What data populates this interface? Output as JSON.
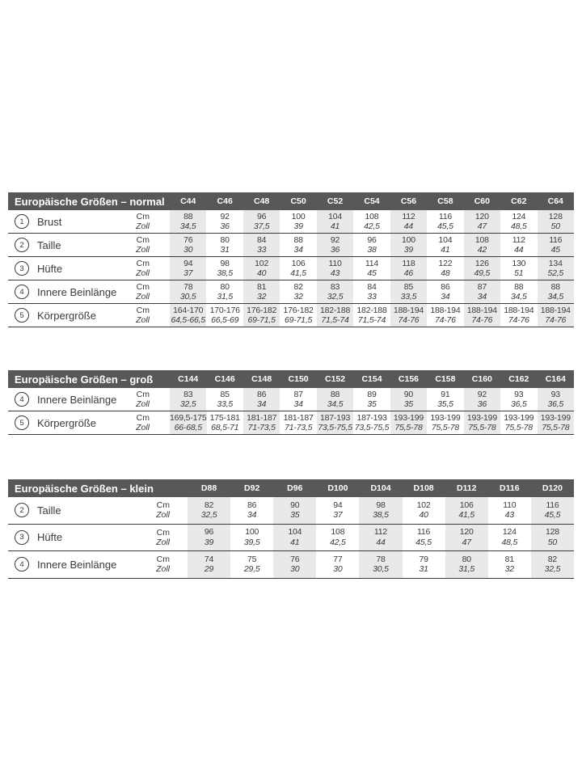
{
  "colors": {
    "header_background": "#58585a",
    "header_text": "#ffffff",
    "column_band": "#e9e9e9",
    "separator_line": "#3a3a3a",
    "body_text": "#3a3a3a"
  },
  "units": {
    "cm": "Cm",
    "zoll": "Zoll"
  },
  "tables": [
    {
      "id": "normal",
      "title": "Europäische Größen – normal",
      "columns": [
        "C44",
        "C46",
        "C48",
        "C50",
        "C52",
        "C54",
        "C56",
        "C58",
        "C60",
        "C62",
        "C64"
      ],
      "rows": [
        {
          "num": "1",
          "label": "Brust",
          "cm": [
            "88",
            "92",
            "96",
            "100",
            "104",
            "108",
            "112",
            "116",
            "120",
            "124",
            "128"
          ],
          "zoll": [
            "34,5",
            "36",
            "37,5",
            "39",
            "41",
            "42,5",
            "44",
            "45,5",
            "47",
            "48,5",
            "50"
          ]
        },
        {
          "num": "2",
          "label": "Taille",
          "cm": [
            "76",
            "80",
            "84",
            "88",
            "92",
            "96",
            "100",
            "104",
            "108",
            "112",
            "116"
          ],
          "zoll": [
            "30",
            "31",
            "33",
            "34",
            "36",
            "38",
            "39",
            "41",
            "42",
            "44",
            "45"
          ]
        },
        {
          "num": "3",
          "label": "Hüfte",
          "cm": [
            "94",
            "98",
            "102",
            "106",
            "110",
            "114",
            "118",
            "122",
            "126",
            "130",
            "134"
          ],
          "zoll": [
            "37",
            "38,5",
            "40",
            "41,5",
            "43",
            "45",
            "46",
            "48",
            "49,5",
            "51",
            "52,5"
          ]
        },
        {
          "num": "4",
          "label": "Innere Beinlänge",
          "cm": [
            "78",
            "80",
            "81",
            "82",
            "83",
            "84",
            "85",
            "86",
            "87",
            "88",
            "88"
          ],
          "zoll": [
            "30,5",
            "31,5",
            "32",
            "32",
            "32,5",
            "33",
            "33,5",
            "34",
            "34",
            "34,5",
            "34,5"
          ]
        },
        {
          "num": "5",
          "label": "Körpergröße",
          "cm": [
            "164-170",
            "170-176",
            "176-182",
            "176-182",
            "182-188",
            "182-188",
            "188-194",
            "188-194",
            "188-194",
            "188-194",
            "188-194"
          ],
          "zoll": [
            "64,5-66,5",
            "66,5-69",
            "69-71,5",
            "69-71,5",
            "71,5-74",
            "71,5-74",
            "74-76",
            "74-76",
            "74-76",
            "74-76",
            "74-76"
          ]
        }
      ]
    },
    {
      "id": "gross",
      "title": "Europäische Größen – groß",
      "columns": [
        "C144",
        "C146",
        "C148",
        "C150",
        "C152",
        "C154",
        "C156",
        "C158",
        "C160",
        "C162",
        "C164"
      ],
      "rows": [
        {
          "num": "4",
          "label": "Innere Beinlänge",
          "cm": [
            "83",
            "85",
            "86",
            "87",
            "88",
            "89",
            "90",
            "91",
            "92",
            "93",
            "93"
          ],
          "zoll": [
            "32,5",
            "33,5",
            "34",
            "34",
            "34,5",
            "35",
            "35",
            "35,5",
            "36",
            "36,5",
            "36,5"
          ]
        },
        {
          "num": "5",
          "label": "Körpergröße",
          "cm": [
            "169,5-175",
            "175-181",
            "181-187",
            "181-187",
            "187-193",
            "187-193",
            "193-199",
            "193-199",
            "193-199",
            "193-199",
            "193-199"
          ],
          "zoll": [
            "66-68,5",
            "68,5-71",
            "71-73,5",
            "71-73,5",
            "73,5-75,5",
            "73,5-75,5",
            "75,5-78",
            "75,5-78",
            "75,5-78",
            "75,5-78",
            "75,5-78"
          ]
        }
      ]
    },
    {
      "id": "klein",
      "title": "Europäische Größen – klein",
      "columns": [
        "D88",
        "D92",
        "D96",
        "D100",
        "D104",
        "D108",
        "D112",
        "D116",
        "D120"
      ],
      "rows": [
        {
          "num": "2",
          "label": "Taille",
          "cm": [
            "82",
            "86",
            "90",
            "94",
            "98",
            "102",
            "106",
            "110",
            "116"
          ],
          "zoll": [
            "32,5",
            "34",
            "35",
            "37",
            "38,5",
            "40",
            "41,5",
            "43",
            "45,5"
          ]
        },
        {
          "num": "3",
          "label": "Hüfte",
          "cm": [
            "96",
            "100",
            "104",
            "108",
            "112",
            "116",
            "120",
            "124",
            "128"
          ],
          "zoll": [
            "39",
            "39,5",
            "41",
            "42,5",
            "44",
            "45,5",
            "47",
            "48,5",
            "50"
          ]
        },
        {
          "num": "4",
          "label": "Innere Beinlänge",
          "cm": [
            "74",
            "75",
            "76",
            "77",
            "78",
            "79",
            "80",
            "81",
            "82"
          ],
          "zoll": [
            "29",
            "29,5",
            "30",
            "30",
            "30,5",
            "31",
            "31,5",
            "32",
            "32,5"
          ]
        }
      ]
    }
  ]
}
